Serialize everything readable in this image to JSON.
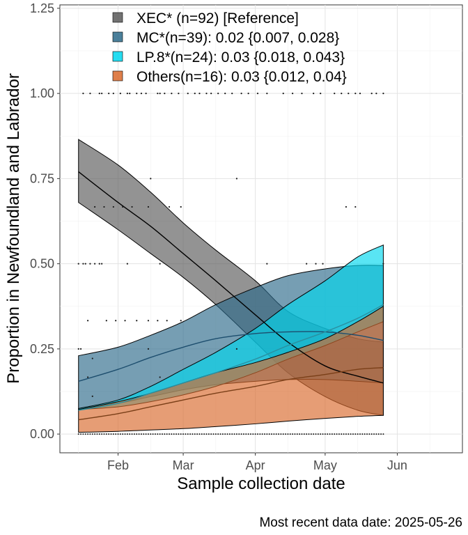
{
  "chart_data": {
    "type": "line",
    "xlabel": "Sample collection date",
    "ylabel": "Proportion in Newfoundland and Labrador",
    "x_ticks": [
      "Feb",
      "Mar",
      "Apr",
      "May",
      "Jun"
    ],
    "y_ticks": [
      "0.00",
      "0.25",
      "0.50",
      "0.75",
      "1.00",
      "1.25"
    ],
    "xlim": [
      "2025-01-07",
      "2025-06-29"
    ],
    "ylim": [
      -0.055,
      1.26
    ],
    "grid": true,
    "legend_position": "top-left",
    "caption": "Most recent data date: 2025-05-26",
    "series": [
      {
        "name": "XEC* (n=92)  [Reference]",
        "color": "#595959",
        "line_color": "#000000",
        "x": [
          "2025-01-15",
          "2025-02-01",
          "2025-02-15",
          "2025-03-01",
          "2025-03-15",
          "2025-04-01",
          "2025-04-15",
          "2025-05-01",
          "2025-05-15",
          "2025-05-26"
        ],
        "y": [
          0.77,
          0.68,
          0.61,
          0.53,
          0.45,
          0.35,
          0.27,
          0.2,
          0.17,
          0.15
        ],
        "lower": [
          0.68,
          0.6,
          0.53,
          0.46,
          0.38,
          0.27,
          0.18,
          0.11,
          0.07,
          0.055
        ],
        "upper": [
          0.865,
          0.79,
          0.71,
          0.62,
          0.54,
          0.45,
          0.36,
          0.31,
          0.28,
          0.27
        ]
      },
      {
        "name": "MC*(n=39): 0.02 {0.007, 0.028}",
        "color": "#2c6a8a",
        "line_color": "#1d4e6e",
        "x": [
          "2025-01-15",
          "2025-02-01",
          "2025-02-15",
          "2025-03-01",
          "2025-03-15",
          "2025-04-01",
          "2025-04-15",
          "2025-05-01",
          "2025-05-15",
          "2025-05-26"
        ],
        "y": [
          0.155,
          0.19,
          0.225,
          0.255,
          0.28,
          0.295,
          0.3,
          0.3,
          0.29,
          0.275
        ],
        "lower": [
          0.072,
          0.09,
          0.11,
          0.13,
          0.145,
          0.155,
          0.16,
          0.16,
          0.155,
          0.15
        ],
        "upper": [
          0.23,
          0.255,
          0.29,
          0.33,
          0.38,
          0.43,
          0.465,
          0.485,
          0.495,
          0.495
        ]
      },
      {
        "name": "LP.8*(n=24): 0.03 {0.018, 0.043}",
        "color": "#00d7ee",
        "line_color": "#2a8fa0",
        "x": [
          "2025-01-15",
          "2025-02-01",
          "2025-02-15",
          "2025-03-01",
          "2025-03-15",
          "2025-04-01",
          "2025-04-15",
          "2025-05-01",
          "2025-05-15",
          "2025-05-26"
        ],
        "y": [
          0.07,
          0.09,
          0.12,
          0.15,
          0.18,
          0.22,
          0.26,
          0.3,
          0.34,
          0.38
        ],
        "lower": [
          0.072,
          0.08,
          0.095,
          0.115,
          0.14,
          0.18,
          0.22,
          0.26,
          0.3,
          0.33
        ],
        "upper": [
          0.075,
          0.1,
          0.14,
          0.19,
          0.24,
          0.31,
          0.38,
          0.45,
          0.52,
          0.555
        ]
      },
      {
        "name": "Others(n=16): 0.03 {0.012, 0.04}",
        "color": "#d9692b",
        "line_color": "#7a3f18",
        "x": [
          "2025-01-15",
          "2025-02-01",
          "2025-02-15",
          "2025-03-01",
          "2025-03-15",
          "2025-04-01",
          "2025-04-15",
          "2025-05-01",
          "2025-05-15",
          "2025-05-26"
        ],
        "y": [
          0.042,
          0.06,
          0.08,
          0.1,
          0.12,
          0.14,
          0.16,
          0.175,
          0.19,
          0.195
        ],
        "lower": [
          0.005,
          0.008,
          0.012,
          0.016,
          0.022,
          0.03,
          0.038,
          0.046,
          0.052,
          0.055
        ],
        "upper": [
          0.072,
          0.095,
          0.12,
          0.15,
          0.18,
          0.21,
          0.24,
          0.28,
          0.33,
          0.375
        ]
      }
    ],
    "points": [
      {
        "x": "2025-01-17",
        "y": 1.0
      },
      {
        "x": "2025-01-20",
        "y": 1.0
      },
      {
        "x": "2025-01-24",
        "y": 1.0
      },
      {
        "x": "2025-01-25",
        "y": 1.0
      },
      {
        "x": "2025-01-28",
        "y": 1.0
      },
      {
        "x": "2025-01-30",
        "y": 1.0
      },
      {
        "x": "2025-02-02",
        "y": 1.0
      },
      {
        "x": "2025-02-05",
        "y": 1.0
      },
      {
        "x": "2025-02-06",
        "y": 1.0
      },
      {
        "x": "2025-02-09",
        "y": 1.0
      },
      {
        "x": "2025-02-11",
        "y": 1.0
      },
      {
        "x": "2025-02-13",
        "y": 1.0
      },
      {
        "x": "2025-02-18",
        "y": 1.0
      },
      {
        "x": "2025-02-19",
        "y": 1.0
      },
      {
        "x": "2025-02-21",
        "y": 1.0
      },
      {
        "x": "2025-02-24",
        "y": 1.0
      },
      {
        "x": "2025-02-27",
        "y": 1.0
      },
      {
        "x": "2025-03-03",
        "y": 1.0
      },
      {
        "x": "2025-03-06",
        "y": 1.0
      },
      {
        "x": "2025-03-08",
        "y": 1.0
      },
      {
        "x": "2025-03-11",
        "y": 1.0
      },
      {
        "x": "2025-03-13",
        "y": 1.0
      },
      {
        "x": "2025-03-16",
        "y": 1.0
      },
      {
        "x": "2025-03-19",
        "y": 1.0
      },
      {
        "x": "2025-03-22",
        "y": 1.0
      },
      {
        "x": "2025-03-26",
        "y": 1.0
      },
      {
        "x": "2025-03-29",
        "y": 1.0
      },
      {
        "x": "2025-04-02",
        "y": 1.0
      },
      {
        "x": "2025-04-06",
        "y": 1.0
      },
      {
        "x": "2025-04-13",
        "y": 1.0
      },
      {
        "x": "2025-04-17",
        "y": 1.0
      },
      {
        "x": "2025-04-21",
        "y": 1.0
      },
      {
        "x": "2025-04-26",
        "y": 1.0
      },
      {
        "x": "2025-04-29",
        "y": 1.0
      },
      {
        "x": "2025-05-05",
        "y": 1.0
      },
      {
        "x": "2025-05-08",
        "y": 1.0
      },
      {
        "x": "2025-05-11",
        "y": 1.0
      },
      {
        "x": "2025-05-14",
        "y": 1.0
      },
      {
        "x": "2025-05-16",
        "y": 1.0
      },
      {
        "x": "2025-05-21",
        "y": 1.0
      },
      {
        "x": "2025-05-23",
        "y": 1.0
      },
      {
        "x": "2025-05-26",
        "y": 1.0
      },
      {
        "x": "2025-01-22",
        "y": 0.667
      },
      {
        "x": "2025-01-26",
        "y": 0.667
      },
      {
        "x": "2025-01-30",
        "y": 0.667
      },
      {
        "x": "2025-02-03",
        "y": 0.667
      },
      {
        "x": "2025-02-07",
        "y": 0.667
      },
      {
        "x": "2025-02-14",
        "y": 0.667
      },
      {
        "x": "2025-02-23",
        "y": 0.667
      },
      {
        "x": "2025-02-28",
        "y": 0.667
      },
      {
        "x": "2025-05-10",
        "y": 0.667
      },
      {
        "x": "2025-05-14",
        "y": 0.667
      },
      {
        "x": "2025-02-15",
        "y": 0.75
      },
      {
        "x": "2025-03-24",
        "y": 0.75
      },
      {
        "x": "2025-01-15",
        "y": 0.5
      },
      {
        "x": "2025-01-17",
        "y": 0.5
      },
      {
        "x": "2025-01-18",
        "y": 0.5
      },
      {
        "x": "2025-01-20",
        "y": 0.5
      },
      {
        "x": "2025-01-22",
        "y": 0.5
      },
      {
        "x": "2025-01-24",
        "y": 0.5
      },
      {
        "x": "2025-01-25",
        "y": 0.5
      },
      {
        "x": "2025-02-05",
        "y": 0.5
      },
      {
        "x": "2025-02-19",
        "y": 0.5
      },
      {
        "x": "2025-04-06",
        "y": 0.5
      },
      {
        "x": "2025-04-23",
        "y": 0.5
      },
      {
        "x": "2025-04-27",
        "y": 0.5
      },
      {
        "x": "2025-04-30",
        "y": 0.5
      },
      {
        "x": "2025-05-26",
        "y": 0.5
      },
      {
        "x": "2025-01-19",
        "y": 0.333
      },
      {
        "x": "2025-01-27",
        "y": 0.333
      },
      {
        "x": "2025-01-31",
        "y": 0.333
      },
      {
        "x": "2025-02-04",
        "y": 0.333
      },
      {
        "x": "2025-02-09",
        "y": 0.333
      },
      {
        "x": "2025-02-14",
        "y": 0.333
      },
      {
        "x": "2025-02-18",
        "y": 0.333
      },
      {
        "x": "2025-02-22",
        "y": 0.333
      },
      {
        "x": "2025-02-28",
        "y": 0.333
      },
      {
        "x": "2025-01-15",
        "y": 0.25
      },
      {
        "x": "2025-01-16",
        "y": 0.25
      },
      {
        "x": "2025-02-14",
        "y": 0.25
      },
      {
        "x": "2025-03-24",
        "y": 0.25
      },
      {
        "x": "2025-01-21",
        "y": 0.222
      },
      {
        "x": "2025-01-19",
        "y": 0.167
      },
      {
        "x": "2025-02-19",
        "y": 0.167
      },
      {
        "x": "2025-01-21",
        "y": 0.111
      }
    ]
  }
}
